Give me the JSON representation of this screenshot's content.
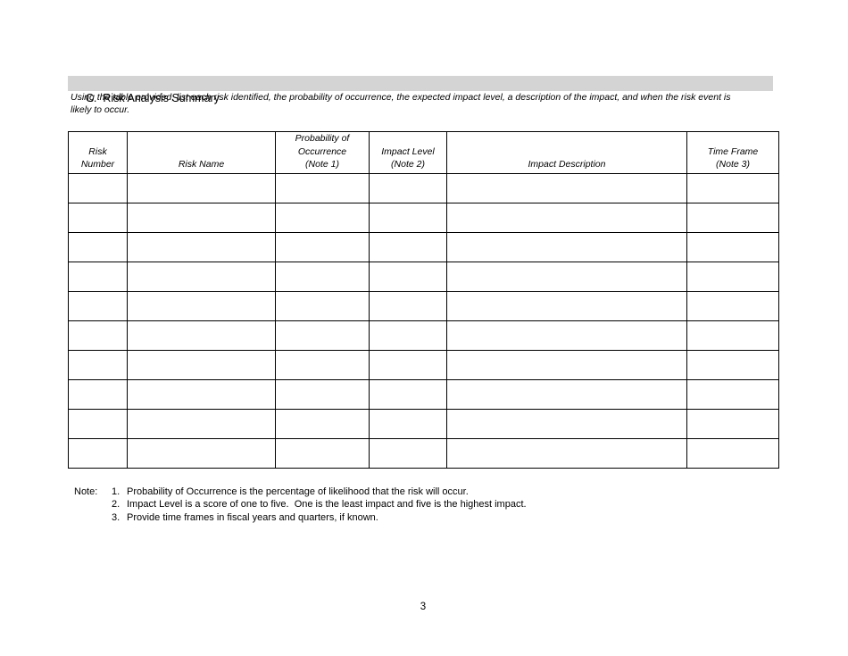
{
  "colors": {
    "heading_bar_bg": "#d4d4d4",
    "table_border": "#000000",
    "text": "#000000"
  },
  "section": {
    "heading": "C.  Risk Analysis Summary",
    "instructions_lines": [
      "Using the table provided, list each risk identified, the probability of occurrence, the expected impact level, a description of the impact, and when the risk event is",
      "likely to occur."
    ]
  },
  "table": {
    "empty_row_count": 10,
    "columns": [
      {
        "id": "risk-number",
        "lines": [
          "Risk",
          "Number"
        ]
      },
      {
        "id": "risk-name",
        "lines": [
          "Risk Name"
        ]
      },
      {
        "id": "probability-of-occurrence",
        "lines": [
          "Probability of",
          "Occurrence",
          "(Note 1)"
        ]
      },
      {
        "id": "impact-level",
        "lines": [
          "Impact Level",
          "(Note 2)"
        ]
      },
      {
        "id": "impact-description",
        "lines": [
          "Impact Description"
        ]
      },
      {
        "id": "time-frame",
        "lines": [
          "Time Frame",
          "(Note 3)"
        ]
      }
    ]
  },
  "notes": {
    "label": "Note:",
    "items": [
      {
        "number": "1.",
        "text": "Probability of Occurrence is the percentage of likelihood that the risk will occur."
      },
      {
        "number": "2.",
        "text": "Impact Level is a score of one to five.  One is the least impact and five is the highest impact."
      },
      {
        "number": "3.",
        "text": "Provide time frames in fiscal years and quarters, if known."
      }
    ]
  },
  "footer": {
    "page_number": "3"
  }
}
